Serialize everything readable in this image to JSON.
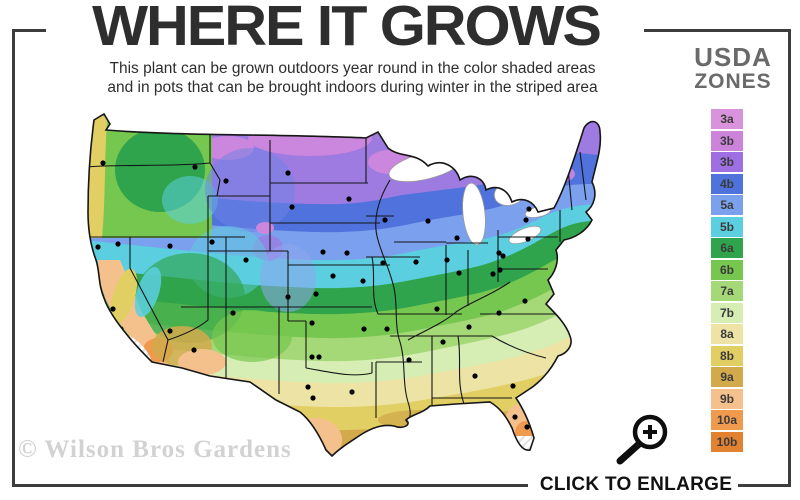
{
  "header": {
    "title": "WHERE IT GROWS",
    "subtitle_line1": "This plant can be grown outdoors year round in the color shaded areas",
    "subtitle_line2": "and in pots that can be brought indoors during winter in the striped area"
  },
  "legend": {
    "title_line1": "USDA",
    "title_line2": "ZONES",
    "zones": [
      {
        "label": "3a",
        "color": "#d993dc"
      },
      {
        "label": "3b",
        "color": "#cc84db"
      },
      {
        "label": "3b",
        "color": "#9e6fe3"
      },
      {
        "label": "4b",
        "color": "#5072dd"
      },
      {
        "label": "5a",
        "color": "#7aa0ee"
      },
      {
        "label": "5b",
        "color": "#5bcfe0"
      },
      {
        "label": "6a",
        "color": "#2fa44c"
      },
      {
        "label": "6b",
        "color": "#76c74f"
      },
      {
        "label": "7a",
        "color": "#a5d877"
      },
      {
        "label": "7b",
        "color": "#d6edb4"
      },
      {
        "label": "8a",
        "color": "#ece3a4"
      },
      {
        "label": "8b",
        "color": "#e2cf63"
      },
      {
        "label": "9a",
        "color": "#d2aa4b"
      },
      {
        "label": "9b",
        "color": "#f4c08c"
      },
      {
        "label": "10a",
        "color": "#f09a4d"
      },
      {
        "label": "10b",
        "color": "#e2812f"
      }
    ]
  },
  "map": {
    "region": "Continental United States hardiness zone map",
    "marker_style": "black city dots",
    "striped_area_color": "#ffffff"
  },
  "footer": {
    "watermark": "© Wilson Bros Gardens",
    "enlarge_label": "CLICK TO ENLARGE",
    "enlarge_icon": "magnifier-plus-icon"
  },
  "colors": {
    "frame": "#3d3d3d",
    "title_text": "#2e2e2e",
    "legend_title_text": "#6a6a6a",
    "watermark_text": "#d2d2d2"
  }
}
